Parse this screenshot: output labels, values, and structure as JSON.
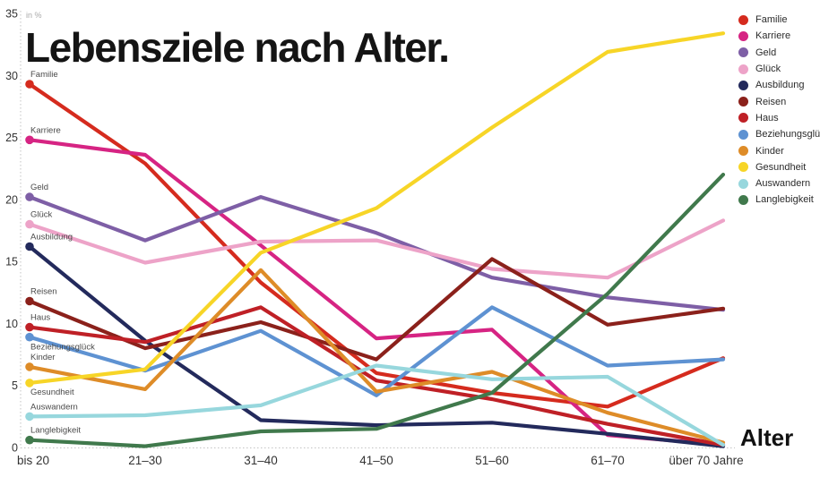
{
  "title": "Lebensziele nach Alter.",
  "axis": {
    "unit_label": "in %",
    "x_axis_label": "Alter",
    "y_ticks": [
      0,
      5,
      10,
      15,
      20,
      25,
      30,
      35
    ],
    "x_labels": [
      "bis 20",
      "21–30",
      "31–40",
      "41–50",
      "51–60",
      "61–70",
      "über 70 Jahre"
    ]
  },
  "chart_data": {
    "type": "line",
    "title": "Lebensziele nach Alter.",
    "ylabel": "in %",
    "xlabel": "Alter",
    "ylim": [
      0,
      35
    ],
    "grid": "dotted axis baseline and left axis only",
    "legend_position": "top-right",
    "categories": [
      "bis 20",
      "21–30",
      "31–40",
      "41–50",
      "51–60",
      "61–70",
      "über 70 Jahre"
    ],
    "series": [
      {
        "name": "Familie",
        "color": "#d52b1e",
        "values": [
          29.3,
          22.9,
          13.3,
          6.0,
          4.4,
          3.3,
          7.2
        ]
      },
      {
        "name": "Karriere",
        "color": "#d62483",
        "values": [
          24.8,
          23.6,
          16.3,
          8.8,
          9.5,
          1.0,
          0.2
        ]
      },
      {
        "name": "Geld",
        "color": "#7e5fa6",
        "values": [
          20.2,
          16.7,
          20.2,
          17.3,
          13.7,
          12.1,
          11.1
        ]
      },
      {
        "name": "Glück",
        "color": "#eda3c8",
        "values": [
          18.0,
          14.9,
          16.6,
          16.7,
          14.4,
          13.7,
          18.3
        ]
      },
      {
        "name": "Ausbildung",
        "color": "#232a5c",
        "values": [
          16.2,
          8.6,
          2.2,
          1.8,
          2.0,
          1.1,
          0.1
        ]
      },
      {
        "name": "Reisen",
        "color": "#8b211b",
        "values": [
          11.8,
          8.0,
          10.1,
          7.1,
          15.2,
          9.9,
          11.2
        ]
      },
      {
        "name": "Haus",
        "color": "#bf2026",
        "values": [
          9.7,
          8.5,
          11.3,
          5.4,
          3.9,
          1.9,
          0.2
        ]
      },
      {
        "name": "Beziehungsglück",
        "color": "#5e92d2",
        "values": [
          8.9,
          6.2,
          9.4,
          4.2,
          11.3,
          6.6,
          7.1
        ]
      },
      {
        "name": "Kinder",
        "color": "#de8c28",
        "values": [
          6.5,
          4.7,
          14.3,
          4.5,
          6.1,
          2.8,
          0.4
        ]
      },
      {
        "name": "Gesundheit",
        "color": "#f7d527",
        "values": [
          5.2,
          6.3,
          15.7,
          19.3,
          25.8,
          31.9,
          33.4
        ]
      },
      {
        "name": "Auswandern",
        "color": "#97d7dd",
        "values": [
          2.5,
          2.6,
          3.4,
          6.6,
          5.5,
          5.7,
          0.2
        ]
      },
      {
        "name": "Langlebigkeit",
        "color": "#40794c",
        "values": [
          0.6,
          0.1,
          1.3,
          1.5,
          4.4,
          12.4,
          22.0
        ]
      }
    ]
  }
}
